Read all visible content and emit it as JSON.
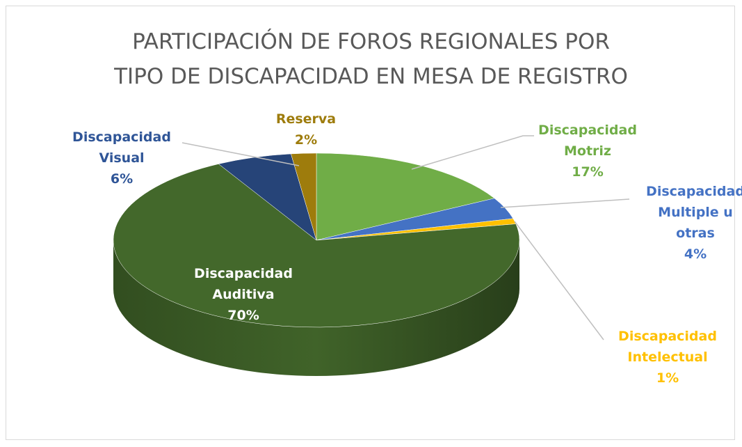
{
  "chart_data": {
    "type": "pie3d",
    "title": [
      "PARTICIPACIÓN DE FOROS REGIONALES POR",
      "TIPO DE DISCAPACIDAD EN MESA DE REGISTRO"
    ],
    "categories": [
      "Discapacidad Motriz",
      "Discapacidad Multiple u otras",
      "Discapacidad Intelectual",
      "Discapacidad Auditiva",
      "Discapacidad Visual",
      "Reserva"
    ],
    "values": [
      17,
      4,
      1,
      70,
      6,
      2
    ],
    "value_labels": [
      "17%",
      "4%",
      "1%",
      "70%",
      "6%",
      "2%"
    ],
    "colors": [
      "#70ad47",
      "#4472c4",
      "#ffc000",
      "#43682b",
      "#264478",
      "#9e7c0c"
    ]
  }
}
